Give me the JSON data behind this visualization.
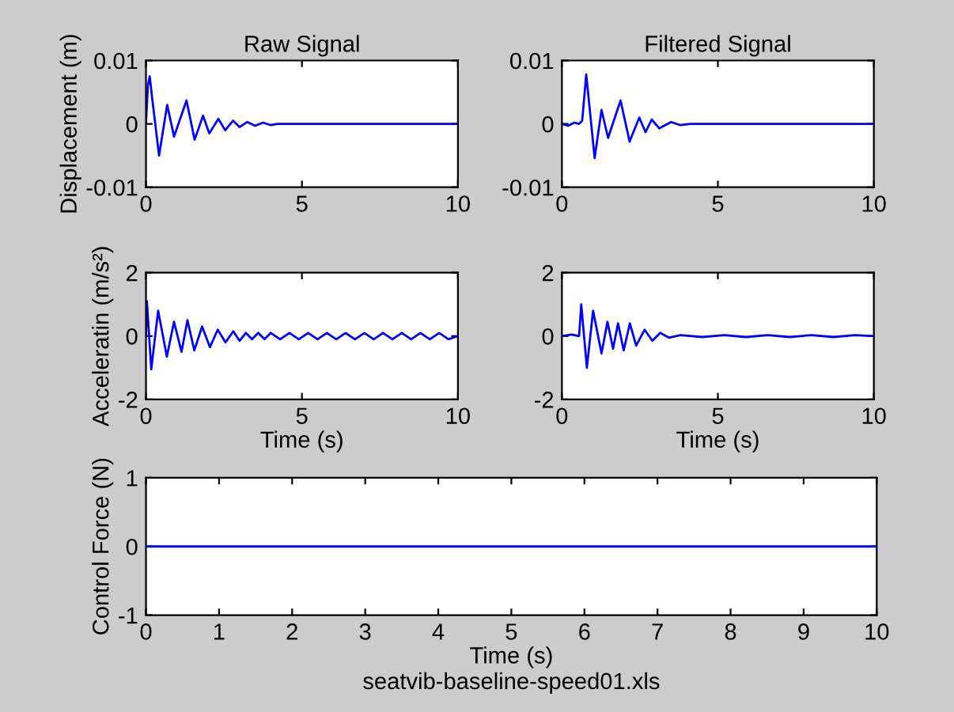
{
  "chart_data": [
    {
      "type": "line",
      "title": "Raw Signal",
      "ylabel": "Displacement (m)",
      "xlim": [
        0,
        10
      ],
      "xticks": [
        0,
        5,
        10
      ],
      "ylim": [
        -0.01,
        0.01
      ],
      "yticks": [
        -0.01,
        0,
        0.01
      ],
      "series": [
        {
          "color": "#0000ff",
          "x": [
            0,
            0.06,
            0.12,
            0.2,
            0.42,
            0.68,
            0.9,
            1.3,
            1.56,
            1.83,
            2.03,
            2.32,
            2.54,
            2.79,
            3.0,
            3.25,
            3.5,
            3.75,
            4.0,
            4.2,
            10
          ],
          "values": [
            0,
            0.006,
            0.0075,
            0.004,
            -0.005,
            0.003,
            -0.002,
            0.0037,
            -0.0025,
            0.0013,
            -0.0015,
            0.0008,
            -0.001,
            0.0005,
            -0.0005,
            0.0003,
            -0.0003,
            0.0002,
            -0.0002,
            0,
            0
          ]
        }
      ]
    },
    {
      "type": "line",
      "title": "Filtered Signal",
      "xlim": [
        0,
        10
      ],
      "xticks": [
        0,
        5,
        10
      ],
      "ylim": [
        -0.01,
        0.01
      ],
      "yticks": [
        -0.01,
        0,
        0.01
      ],
      "series": [
        {
          "color": "#0000ff",
          "x": [
            0,
            0.2,
            0.4,
            0.55,
            0.65,
            0.78,
            1.05,
            1.27,
            1.48,
            1.88,
            2.17,
            2.48,
            2.68,
            2.88,
            3.12,
            3.5,
            3.8,
            4.1,
            10
          ],
          "values": [
            0,
            -0.0003,
            0.0002,
            0,
            0.0005,
            0.0078,
            -0.0054,
            0.0022,
            -0.0022,
            0.0037,
            -0.0028,
            0.001,
            -0.0013,
            0.0007,
            -0.0007,
            0.0003,
            -0.0002,
            0,
            0
          ]
        }
      ]
    },
    {
      "type": "line",
      "xlabel": "Time (s)",
      "ylabel": "Acceleratin (m/s²)",
      "xlim": [
        0,
        10
      ],
      "xticks": [
        0,
        5,
        10
      ],
      "ylim": [
        -2,
        2
      ],
      "yticks": [
        -2,
        0,
        2
      ],
      "series": [
        {
          "color": "#0000ff",
          "x": [
            0,
            0.03,
            0.17,
            0.39,
            0.67,
            0.9,
            1.14,
            1.33,
            1.55,
            1.8,
            2.05,
            2.3,
            2.55,
            2.8,
            3.0,
            3.2,
            3.4,
            3.6,
            3.8,
            4.0,
            4.3,
            4.6,
            4.9,
            5.2,
            5.5,
            5.8,
            6.1,
            6.4,
            6.7,
            7.0,
            7.3,
            7.6,
            7.9,
            8.2,
            8.5,
            8.8,
            9.1,
            9.4,
            9.7,
            10
          ],
          "values": [
            0,
            1.1,
            -1.05,
            0.8,
            -0.65,
            0.45,
            -0.5,
            0.5,
            -0.45,
            0.3,
            -0.35,
            0.2,
            -0.2,
            0.15,
            -0.15,
            0.1,
            -0.1,
            0.1,
            -0.1,
            0.1,
            -0.1,
            0.1,
            -0.1,
            0.1,
            -0.1,
            0.1,
            -0.1,
            0.1,
            -0.1,
            0.1,
            -0.1,
            0.1,
            -0.1,
            0.1,
            -0.1,
            0.1,
            -0.1,
            0.1,
            -0.1,
            0
          ]
        }
      ]
    },
    {
      "type": "line",
      "xlabel": "Time (s)",
      "xlim": [
        0,
        10
      ],
      "xticks": [
        0,
        5,
        10
      ],
      "ylim": [
        -2,
        2
      ],
      "yticks": [
        -2,
        0,
        2
      ],
      "series": [
        {
          "color": "#0000ff",
          "x": [
            0,
            0.3,
            0.55,
            0.62,
            0.8,
            1.0,
            1.27,
            1.46,
            1.64,
            1.8,
            1.98,
            2.18,
            2.38,
            2.65,
            2.9,
            3.15,
            3.43,
            3.8,
            4.5,
            5.2,
            5.9,
            6.6,
            7.3,
            8.0,
            8.7,
            9.4,
            10
          ],
          "values": [
            0,
            0.05,
            0,
            1.0,
            -1.0,
            0.8,
            -0.55,
            0.45,
            -0.4,
            0.4,
            -0.45,
            0.4,
            -0.3,
            0.2,
            -0.15,
            0.1,
            -0.05,
            0.03,
            -0.03,
            0.03,
            -0.03,
            0.03,
            -0.03,
            0.03,
            -0.03,
            0.03,
            0
          ]
        }
      ]
    },
    {
      "type": "line",
      "xlabel": "Time (s)",
      "ylabel": "Control Force (N)",
      "xlim": [
        0,
        10
      ],
      "xticks": [
        0,
        1,
        2,
        3,
        4,
        5,
        6,
        7,
        8,
        9,
        10
      ],
      "ylim": [
        -1,
        1
      ],
      "yticks": [
        -1,
        0,
        1
      ],
      "annotations": [
        "seatvib-baseline-speed01.xls"
      ],
      "series": [
        {
          "color": "#0000ff",
          "x": [
            0,
            10
          ],
          "values": [
            0,
            0
          ]
        }
      ]
    }
  ]
}
